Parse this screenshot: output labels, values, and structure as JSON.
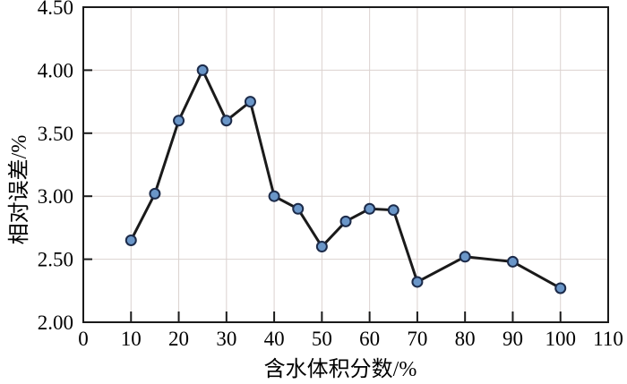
{
  "figure": {
    "background": "#ffffff"
  },
  "chart_data": {
    "type": "line",
    "title": "",
    "xlabel": "含水体积分数/%",
    "ylabel": "相对误差/%",
    "x": [
      10,
      15,
      20,
      25,
      30,
      35,
      40,
      45,
      50,
      55,
      60,
      65,
      70,
      80,
      90,
      100
    ],
    "y": [
      2.65,
      3.02,
      3.6,
      4.0,
      3.6,
      3.75,
      3.0,
      2.9,
      2.6,
      2.8,
      2.9,
      2.89,
      2.32,
      2.52,
      2.48,
      2.27
    ],
    "xlim": [
      0,
      110
    ],
    "ylim": [
      2.0,
      4.5
    ],
    "x_ticks": [
      0,
      10,
      20,
      30,
      40,
      50,
      60,
      70,
      80,
      90,
      100,
      110
    ],
    "x_tick_labels": [
      "0",
      "10",
      "20",
      "30",
      "40",
      "50",
      "60",
      "70",
      "80",
      "90",
      "100",
      "110"
    ],
    "y_ticks": [
      2.0,
      2.5,
      3.0,
      3.5,
      4.0,
      4.5
    ],
    "y_tick_labels": [
      "2.00",
      "2.50",
      "3.00",
      "3.50",
      "4.00",
      "4.50"
    ],
    "grid": "on",
    "legend": "none",
    "marker": "circle",
    "colors": {
      "line": "#1a1a1a",
      "marker_fill": "#6a96c8",
      "marker_stroke": "#1c2b4a",
      "grid": "#dbd2cf",
      "axis": "#1a1a1a",
      "text": "#000000"
    }
  }
}
